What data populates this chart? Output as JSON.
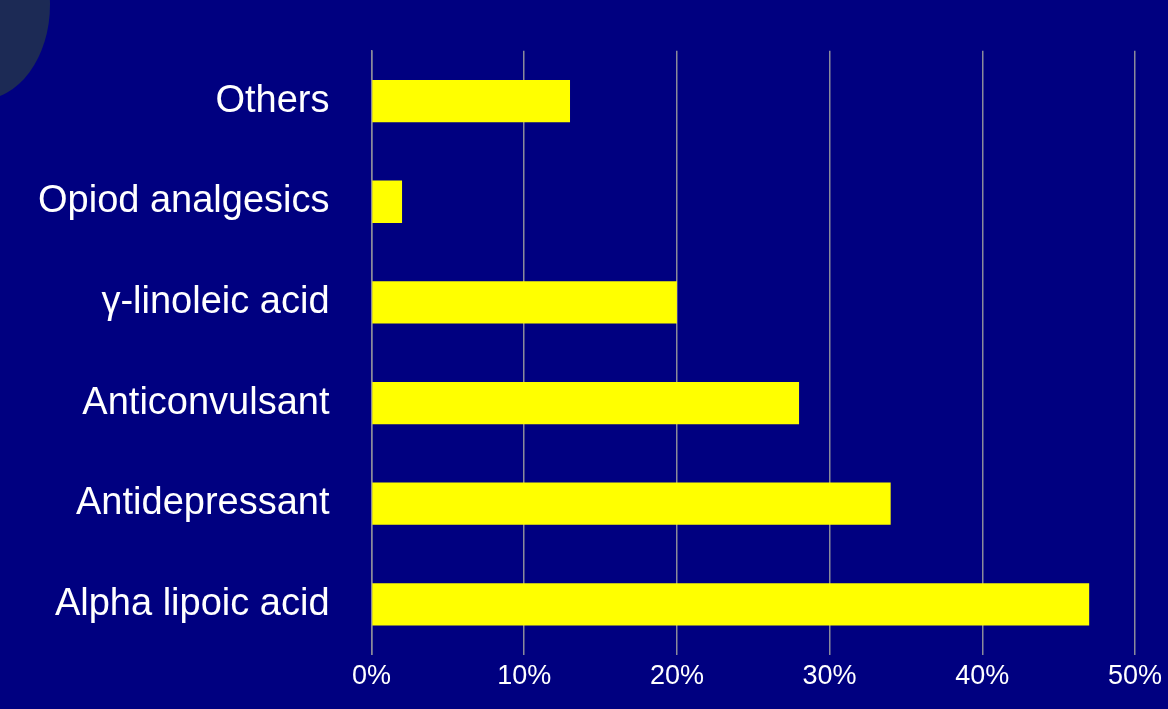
{
  "chart_data": {
    "type": "bar",
    "orientation": "horizontal",
    "categories": [
      "Others",
      "Opiod analgesics",
      "γ-linoleic acid",
      "Anticonvulsant",
      "Antidepressant",
      "Alpha lipoic acid"
    ],
    "values": [
      13,
      2,
      20,
      28,
      34,
      47
    ],
    "color": "#ffff00",
    "xlim": [
      0,
      50
    ],
    "xticks": [
      {
        "value": 0,
        "label": "0%"
      },
      {
        "value": 10,
        "label": "10%"
      },
      {
        "value": 20,
        "label": "20%"
      },
      {
        "value": 30,
        "label": "30%"
      },
      {
        "value": 40,
        "label": "40%"
      },
      {
        "value": 50,
        "label": "50%"
      }
    ],
    "grid": "x",
    "legend": false
  }
}
